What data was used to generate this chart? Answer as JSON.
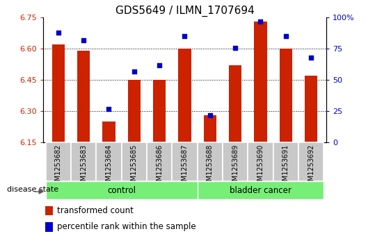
{
  "title": "GDS5649 / ILMN_1707694",
  "samples": [
    "GSM1253682",
    "GSM1253683",
    "GSM1253684",
    "GSM1253685",
    "GSM1253686",
    "GSM1253687",
    "GSM1253688",
    "GSM1253689",
    "GSM1253690",
    "GSM1253691",
    "GSM1253692"
  ],
  "transformed_count": [
    6.62,
    6.59,
    6.25,
    6.45,
    6.45,
    6.6,
    6.28,
    6.52,
    6.73,
    6.6,
    6.47
  ],
  "percentile_rank": [
    88,
    82,
    27,
    57,
    62,
    85,
    22,
    76,
    97,
    85,
    68
  ],
  "ylim_left": [
    6.15,
    6.75
  ],
  "ylim_right": [
    0,
    100
  ],
  "yticks_left": [
    6.15,
    6.3,
    6.45,
    6.6,
    6.75
  ],
  "yticks_right": [
    0,
    25,
    50,
    75,
    100
  ],
  "ytick_right_labels": [
    "0",
    "25",
    "50",
    "75",
    "100%"
  ],
  "bar_color": "#cc2200",
  "dot_color": "#0000cc",
  "bar_width": 0.5,
  "n_control": 6,
  "n_cancer": 5,
  "control_label": "control",
  "cancer_label": "bladder cancer",
  "disease_state_label": "disease state",
  "legend_bar_label": "transformed count",
  "legend_dot_label": "percentile rank within the sample",
  "group_bg_color": "#77ee77",
  "sample_bg_color": "#c8c8c8",
  "plot_bg_color": "#ffffff",
  "title_fontsize": 11,
  "tick_fontsize": 8,
  "label_fontsize": 9
}
